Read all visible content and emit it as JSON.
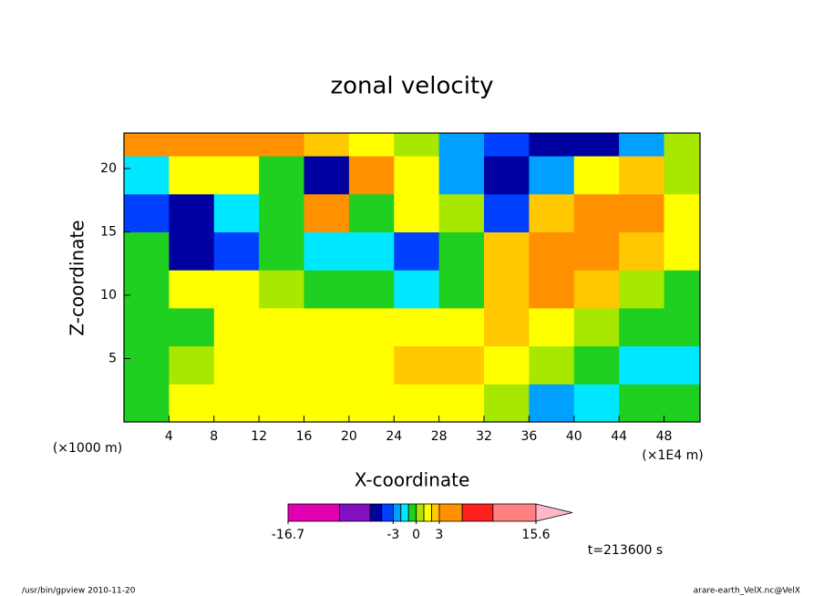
{
  "chart_data": {
    "type": "contour",
    "title": "zonal velocity",
    "xlabel": "X-coordinate",
    "ylabel": "Z-coordinate",
    "x_unit": "(×1E4 m)",
    "y_unit": "(×1000 m)",
    "time_label": "t=213600 s",
    "footer_left": "/usr/bin/gpview  2010-11-20",
    "footer_right": "arare-earth_VelX.nc@VelX",
    "xlim": [
      0,
      51.2
    ],
    "ylim": [
      0,
      22.8
    ],
    "xticks": [
      4,
      8,
      12,
      16,
      20,
      24,
      28,
      32,
      36,
      40,
      44,
      48
    ],
    "yticks": [
      5,
      10,
      15,
      20
    ],
    "x_edges": [
      0,
      4,
      8,
      12,
      16,
      20,
      24,
      28,
      32,
      36,
      40,
      44,
      48,
      51.2
    ],
    "y_edges": [
      0,
      3,
      6,
      9,
      12,
      15,
      18,
      21,
      22.8
    ],
    "z": [
      [
        -0.5,
        1.5,
        1.5,
        1.5,
        1.5,
        1.5,
        1.5,
        1.5,
        0.5,
        -2.5,
        -2,
        -0.5,
        -0.5
      ],
      [
        -0.5,
        0.5,
        1.5,
        1.5,
        1.5,
        1.5,
        2.5,
        2.5,
        1.5,
        0.5,
        -0.5,
        -1.5,
        -1.5
      ],
      [
        -0.5,
        -0.5,
        1.5,
        1.5,
        1.5,
        1.5,
        1.5,
        1.5,
        2.5,
        1.5,
        0.5,
        -0.5,
        -0.5
      ],
      [
        -0.5,
        1.5,
        1.5,
        0.5,
        -0.5,
        -0.5,
        -1.5,
        -0.5,
        2.5,
        3.5,
        2.5,
        0.5,
        -0.5
      ],
      [
        -0.5,
        -5,
        -4,
        -0.5,
        -1.5,
        -1.5,
        -4,
        -0.5,
        2.5,
        4,
        4,
        2.5,
        1.5
      ],
      [
        -4,
        -5,
        -2,
        -0.5,
        4,
        -0.5,
        1.5,
        0.5,
        -4,
        2.5,
        4,
        4,
        1.5
      ],
      [
        -1.5,
        1.5,
        1.5,
        -0.5,
        -5,
        4,
        1.5,
        -3,
        -5,
        -3,
        1.5,
        2.5,
        0.5
      ],
      [
        4,
        4,
        4,
        4,
        2.5,
        1.5,
        0.5,
        -3,
        -4,
        -5,
        -5,
        -3,
        0.5
      ]
    ],
    "colorbar": {
      "bounds": [
        -16.7,
        -10,
        -6,
        -4.5,
        -3,
        -2,
        -1,
        0,
        1,
        2,
        3,
        6,
        10,
        15.6
      ],
      "colors": [
        "#e000b0",
        "#8010c0",
        "#0000a0",
        "#0040ff",
        "#00a0ff",
        "#00e8ff",
        "#20d020",
        "#a8e800",
        "#ffff00",
        "#ffc800",
        "#ff9000",
        "#ff2020",
        "#ff8080"
      ],
      "extend_color": "#ffb8c8",
      "ticks": [
        -16.7,
        -3,
        0,
        3,
        15.6
      ]
    }
  }
}
